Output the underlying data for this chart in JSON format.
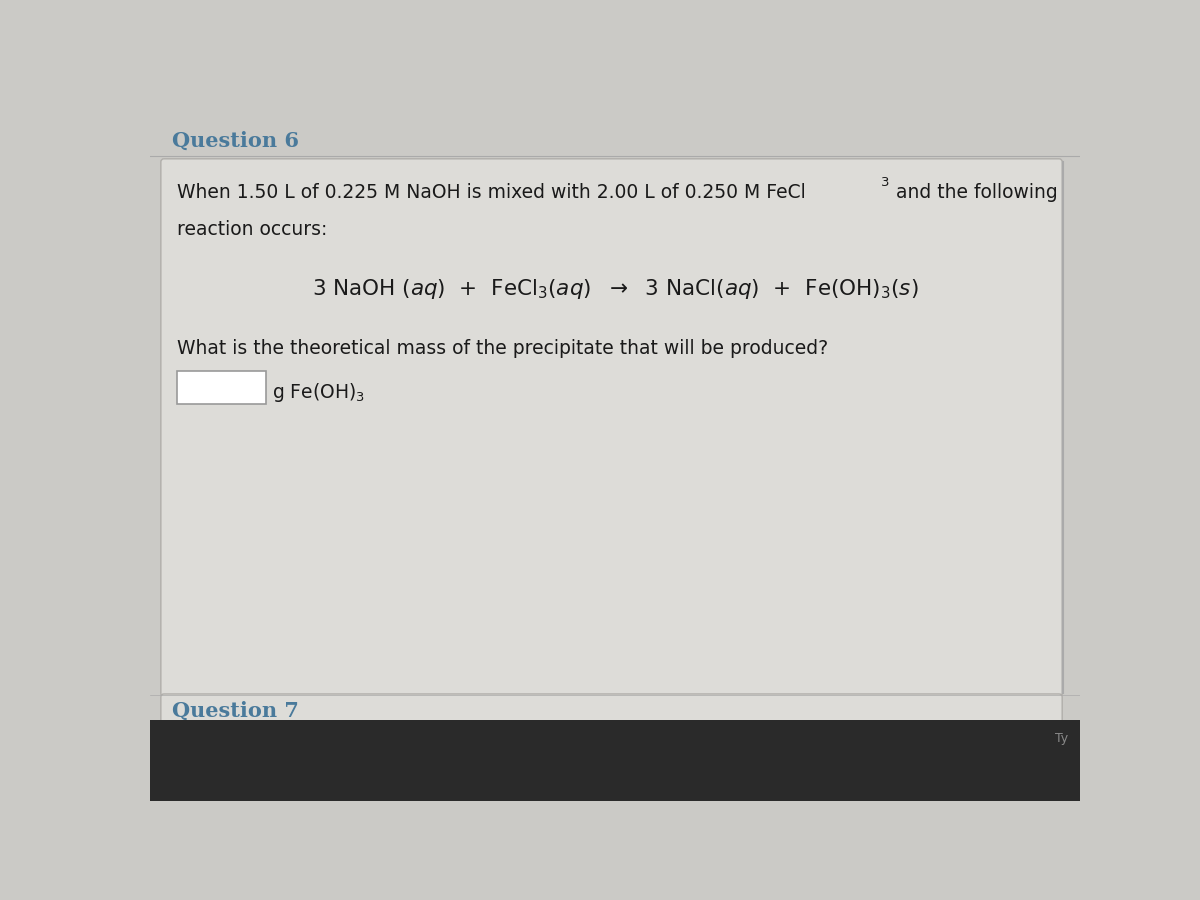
{
  "page_background": "#cbcac6",
  "box_background": "#dddcd8",
  "box_border_color": "#b0aeaa",
  "question_label_color": "#4a7a9b",
  "text_color": "#1a1a1a",
  "question6_label": "Question 6",
  "question7_label": "Question 7",
  "line1_main": "When 1.50 L of 0.225 M NaOH is mixed with 2.00 L of 0.250 M FeCl",
  "line1_sub": "3",
  "line1_end": " and the following",
  "line2": "reaction occurs:",
  "question_text": "What is the theoretical mass of the precipitate that will be produced?",
  "answer_label": "g Fe(OH)",
  "answer_sub": "3",
  "input_box_color": "#ffffff",
  "input_box_border": "#999999",
  "bottom_bar_color": "#2a2a2a",
  "divider_color": "#aaaaaa",
  "title_fontsize": 15,
  "body_fontsize": 13.5,
  "eq_fontsize": 14.5
}
